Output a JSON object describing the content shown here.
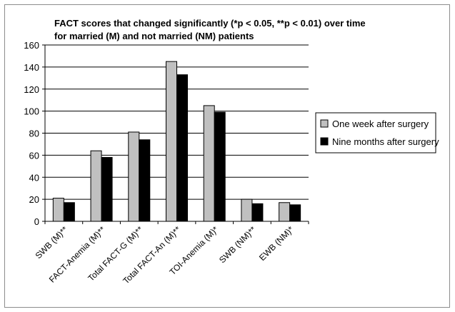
{
  "chart_data": {
    "type": "bar",
    "title_lines": [
      "FACT scores that changed significantly (*p < 0.05, **p < 0.01) over time",
      "for married (M) and not married (NM) patients"
    ],
    "categories": [
      "SWB (M)**",
      "FACT-Anemia (M)**",
      "Total FACT-G (M)**",
      "Total FACT-An (M)**",
      "TOI-Anemia (M)*",
      "SWB (NM)**",
      "EWB (NM)*"
    ],
    "series": [
      {
        "name": "One week after surgery",
        "color": "#c0c0c0",
        "values": [
          21,
          64,
          81,
          145,
          105,
          20,
          17
        ]
      },
      {
        "name": "Nine months after surgery",
        "color": "#000000",
        "values": [
          17,
          58,
          74,
          133,
          99,
          16,
          15
        ]
      }
    ],
    "ylim": [
      0,
      160
    ],
    "yticks": [
      0,
      20,
      40,
      60,
      80,
      100,
      120,
      140,
      160
    ],
    "grid": true,
    "legend": "right"
  }
}
